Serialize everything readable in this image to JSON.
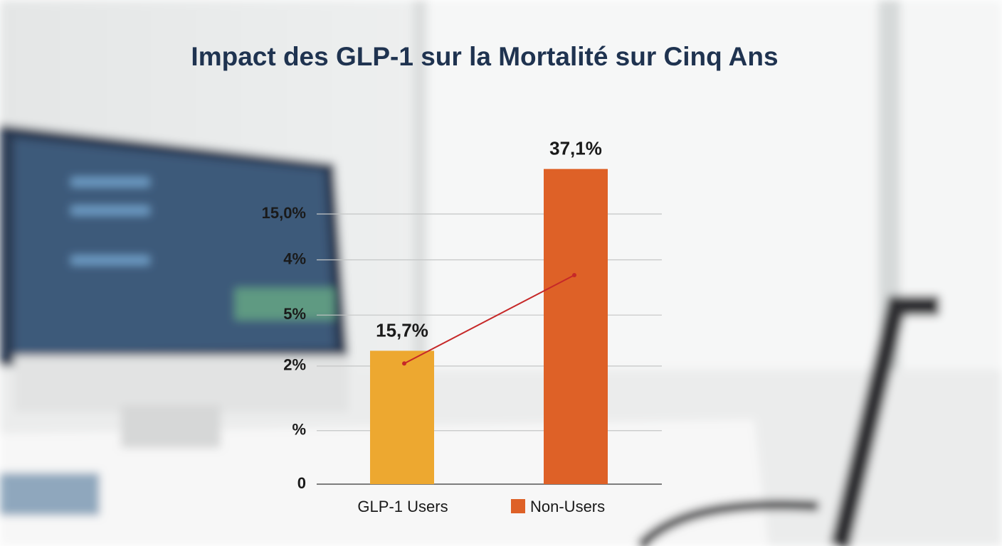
{
  "chart_data": {
    "type": "bar",
    "title": "Impact des GLP-1 sur la Mortalité sur Cinq Ans",
    "categories": [
      "GLP-1 Users",
      "Non-Users"
    ],
    "values": [
      15.7,
      37.1
    ],
    "value_labels": [
      "15,7%",
      "37,1%"
    ],
    "colors": [
      "#eda830",
      "#de6127"
    ],
    "ylim": [
      0,
      40
    ],
    "yticks": [
      0,
      {
        "value": 6.3,
        "label": "%"
      },
      {
        "value": 13.9,
        "label": "2%"
      },
      {
        "value": 19.9,
        "label": "5%"
      },
      {
        "value": 26.4,
        "label": "4%"
      },
      {
        "value": 31.8,
        "label": "15,0%"
      }
    ],
    "grid": true,
    "trend": {
      "color": "#c62828",
      "values": [
        14.2,
        24.6
      ]
    }
  }
}
